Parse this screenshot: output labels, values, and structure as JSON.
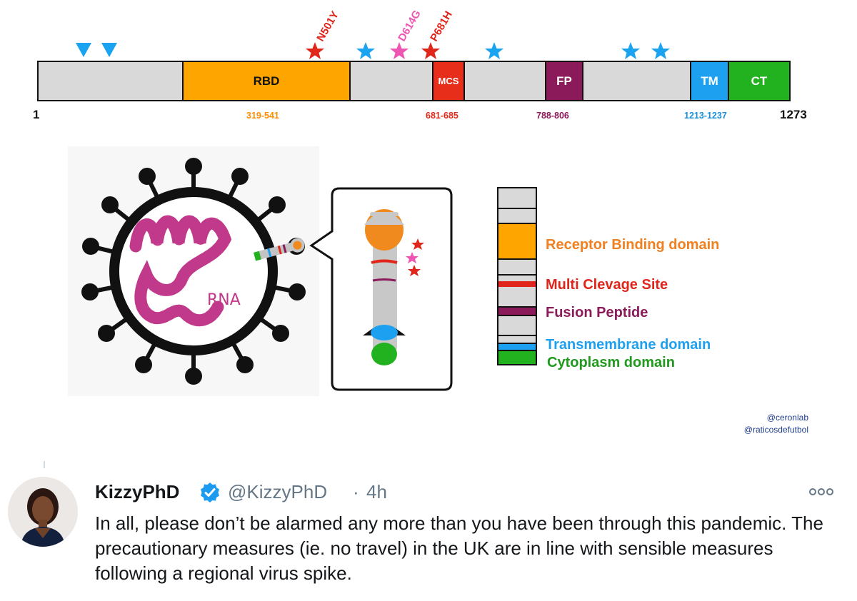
{
  "diagram": {
    "start_label": "1",
    "end_label": "1273",
    "domains": [
      {
        "label": "RBD",
        "range": "319-541",
        "color": "#FFA500",
        "text_color": "#111111",
        "range_color": "#ff8c00"
      },
      {
        "label": "MCS",
        "range": "681-685",
        "color": "#E62E1B",
        "text_color": "#ffffff",
        "range_color": "#e02b1a"
      },
      {
        "label": "FP",
        "range": "788-806",
        "color": "#8B1A5A",
        "text_color": "#ffffff",
        "range_color": "#8b1a5a"
      },
      {
        "label": "TM",
        "range": "1213-1237",
        "color": "#1EA0F0",
        "text_color": "#ffffff",
        "range_color": "#1a8fd8"
      },
      {
        "label": "CT",
        "range": "",
        "color": "#22B21F",
        "text_color": "#ffffff",
        "range_color": "#22b21f"
      }
    ],
    "mutations": [
      {
        "label": "N501Y",
        "color": "#e0261b"
      },
      {
        "label": "D614G",
        "color": "#ef56b3"
      },
      {
        "label": "P681H",
        "color": "#e0261b"
      }
    ],
    "rna_label": "RNA"
  },
  "legend": [
    {
      "label": "Receptor Binding domain",
      "color": "#f08020"
    },
    {
      "label": "Multi Clevage Site",
      "color": "#e0261b"
    },
    {
      "label": "Fusion Peptide",
      "color": "#8b1a5a"
    },
    {
      "label": "Transmembrane domain",
      "color": "#1ea0f0"
    },
    {
      "label": "Cytoplasm domain",
      "color": "#1f9a1c"
    }
  ],
  "credits": [
    "@ceronlab",
    "@raticosdefutbol"
  ],
  "tweet": {
    "name": "KizzyPhD",
    "handle": "@KizzyPhD",
    "separator": "·",
    "time": "4h",
    "text": "In all, please don’t be alarmed any more than you have been through this pandemic. The precautionary measures (ie. no travel) in the UK are in line with sensible measures following a regional virus spike.",
    "verified_icon": "verified-badge-icon",
    "more_icon": "more-options-icon"
  }
}
